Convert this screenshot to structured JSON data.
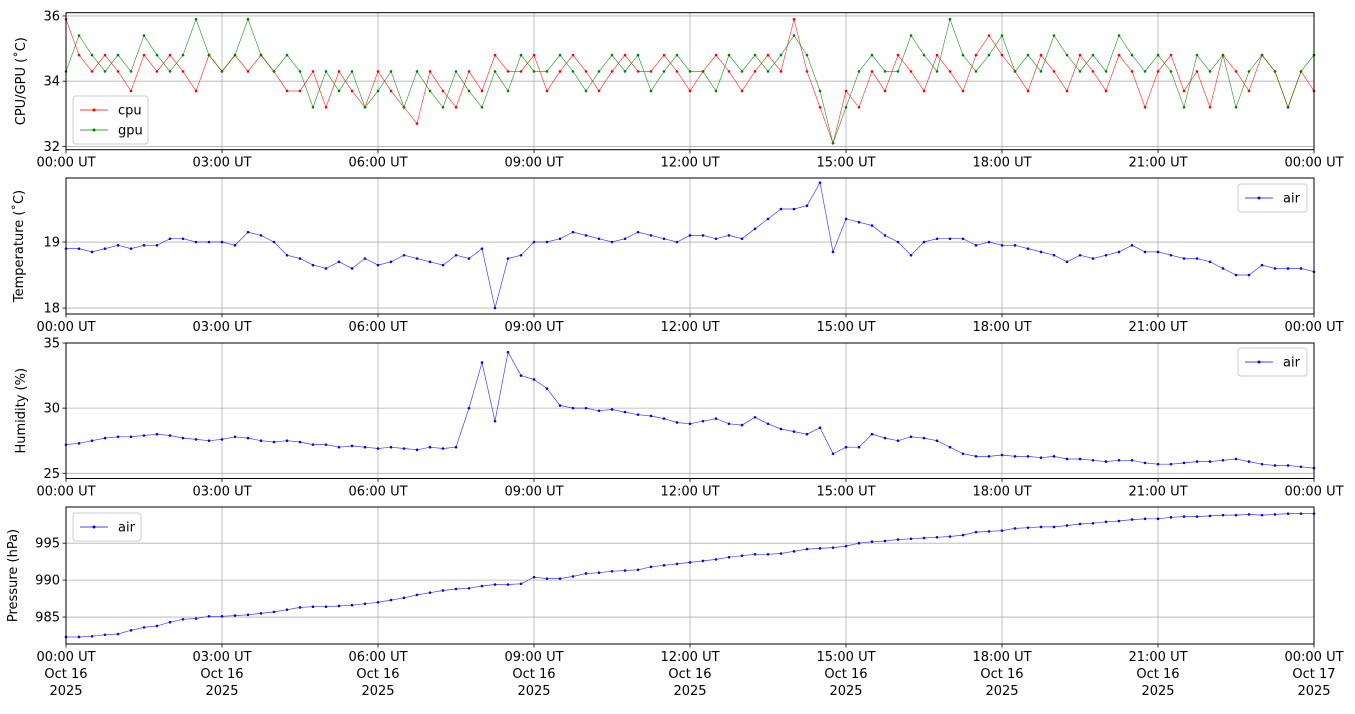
{
  "chart_data": [
    {
      "type": "line",
      "ylabel": "CPU/GPU (˚C)",
      "ylim": [
        31.9,
        36.1
      ],
      "yticks": [
        32,
        34,
        36
      ],
      "grid": true,
      "legend": "lower-left",
      "xtick_labels": [
        "00:00 UT",
        "03:00 UT",
        "06:00 UT",
        "09:00 UT",
        "12:00 UT",
        "15:00 UT",
        "18:00 UT",
        "21:00 UT",
        "00:00 UT"
      ],
      "series": [
        {
          "name": "cpu",
          "color": "#ff0000",
          "values": [
            35.9,
            34.8,
            34.3,
            34.8,
            34.3,
            33.7,
            34.8,
            34.3,
            34.8,
            34.3,
            33.7,
            34.8,
            34.3,
            34.8,
            34.3,
            34.8,
            34.3,
            33.7,
            33.7,
            34.3,
            33.2,
            34.3,
            33.7,
            33.2,
            34.3,
            33.7,
            33.2,
            32.7,
            34.3,
            33.7,
            33.2,
            34.3,
            33.7,
            34.8,
            34.3,
            34.3,
            34.8,
            33.7,
            34.3,
            34.8,
            34.3,
            33.7,
            34.3,
            34.8,
            34.3,
            34.3,
            34.8,
            34.3,
            33.7,
            34.3,
            34.8,
            34.3,
            33.7,
            34.3,
            34.8,
            34.3,
            35.9,
            34.3,
            33.2,
            32.1,
            33.7,
            33.2,
            34.3,
            33.7,
            34.8,
            34.3,
            33.7,
            34.8,
            34.3,
            33.7,
            34.8,
            35.4,
            34.8,
            34.3,
            33.7,
            34.8,
            34.3,
            33.7,
            34.8,
            34.3,
            33.7,
            34.8,
            34.3,
            33.2,
            34.3,
            34.8,
            33.7,
            34.3,
            33.2,
            34.8,
            34.3,
            33.7,
            34.8,
            34.3,
            33.2,
            34.3,
            33.7
          ]
        },
        {
          "name": "gpu",
          "color": "#008000",
          "values": [
            34.3,
            35.4,
            34.8,
            34.3,
            34.8,
            34.3,
            35.4,
            34.8,
            34.3,
            34.8,
            35.9,
            34.8,
            34.3,
            34.8,
            35.9,
            34.8,
            34.3,
            34.8,
            34.3,
            33.2,
            34.3,
            33.7,
            34.3,
            33.2,
            33.7,
            34.3,
            33.2,
            34.3,
            33.7,
            33.2,
            34.3,
            33.7,
            33.2,
            34.3,
            33.7,
            34.8,
            34.3,
            34.3,
            34.8,
            34.3,
            33.7,
            34.3,
            34.8,
            34.3,
            34.8,
            33.7,
            34.3,
            34.8,
            34.3,
            34.3,
            33.7,
            34.8,
            34.3,
            34.8,
            34.3,
            34.8,
            35.4,
            34.8,
            33.7,
            32.1,
            33.2,
            34.3,
            34.8,
            34.3,
            34.3,
            35.4,
            34.8,
            34.3,
            35.9,
            34.8,
            34.3,
            34.8,
            35.4,
            34.3,
            34.8,
            34.3,
            35.4,
            34.8,
            34.3,
            34.8,
            34.3,
            35.4,
            34.8,
            34.3,
            34.8,
            34.3,
            33.2,
            34.8,
            34.3,
            34.8,
            33.2,
            34.3,
            34.8,
            34.3,
            33.2,
            34.3,
            34.8
          ]
        }
      ]
    },
    {
      "type": "line",
      "ylabel": "Temperature (˚C)",
      "ylim": [
        17.91,
        19.97
      ],
      "yticks": [
        18,
        19
      ],
      "grid": true,
      "legend": "upper-right",
      "xtick_labels": [
        "00:00 UT",
        "03:00 UT",
        "06:00 UT",
        "09:00 UT",
        "12:00 UT",
        "15:00 UT",
        "18:00 UT",
        "21:00 UT",
        "00:00 UT"
      ],
      "series": [
        {
          "name": "air",
          "color": "#0000ff",
          "values": [
            18.9,
            18.9,
            18.85,
            18.9,
            18.95,
            18.9,
            18.95,
            18.95,
            19.05,
            19.05,
            19.0,
            19.0,
            19.0,
            18.95,
            19.15,
            19.1,
            19.0,
            18.8,
            18.75,
            18.65,
            18.6,
            18.7,
            18.6,
            18.75,
            18.65,
            18.7,
            18.8,
            18.75,
            18.7,
            18.65,
            18.8,
            18.75,
            18.9,
            18.0,
            18.75,
            18.8,
            19.0,
            19.0,
            19.05,
            19.15,
            19.1,
            19.05,
            19.0,
            19.05,
            19.15,
            19.1,
            19.05,
            19.0,
            19.1,
            19.1,
            19.05,
            19.1,
            19.05,
            19.2,
            19.35,
            19.5,
            19.5,
            19.55,
            19.9,
            18.85,
            19.35,
            19.3,
            19.25,
            19.1,
            19.0,
            18.8,
            19.0,
            19.05,
            19.05,
            19.05,
            18.95,
            19.0,
            18.95,
            18.95,
            18.9,
            18.85,
            18.8,
            18.7,
            18.8,
            18.75,
            18.8,
            18.85,
            18.95,
            18.85,
            18.85,
            18.8,
            18.75,
            18.75,
            18.7,
            18.6,
            18.5,
            18.5,
            18.65,
            18.6,
            18.6,
            18.6,
            18.55
          ]
        }
      ]
    },
    {
      "type": "line",
      "ylabel": "Humidity (%)",
      "ylim": [
        24.6,
        35.0
      ],
      "yticks": [
        25,
        30,
        35
      ],
      "grid": true,
      "legend": "upper-right",
      "xtick_labels": [
        "00:00 UT",
        "03:00 UT",
        "06:00 UT",
        "09:00 UT",
        "12:00 UT",
        "15:00 UT",
        "18:00 UT",
        "21:00 UT",
        "00:00 UT"
      ],
      "series": [
        {
          "name": "air",
          "color": "#0000ff",
          "values": [
            27.2,
            27.3,
            27.5,
            27.7,
            27.8,
            27.8,
            27.9,
            28.0,
            27.9,
            27.7,
            27.6,
            27.5,
            27.6,
            27.8,
            27.7,
            27.5,
            27.4,
            27.5,
            27.4,
            27.2,
            27.2,
            27.0,
            27.1,
            27.0,
            26.9,
            27.0,
            26.9,
            26.8,
            27.0,
            26.9,
            27.0,
            30.0,
            33.5,
            29.0,
            34.3,
            32.5,
            32.2,
            31.5,
            30.2,
            30.0,
            30.0,
            29.8,
            29.9,
            29.7,
            29.5,
            29.4,
            29.2,
            28.9,
            28.8,
            29.0,
            29.2,
            28.8,
            28.7,
            29.3,
            28.8,
            28.4,
            28.2,
            28.0,
            28.5,
            26.5,
            27.0,
            27.0,
            28.0,
            27.7,
            27.5,
            27.8,
            27.7,
            27.5,
            27.0,
            26.5,
            26.3,
            26.3,
            26.4,
            26.3,
            26.3,
            26.2,
            26.3,
            26.1,
            26.1,
            26.0,
            25.9,
            26.0,
            26.0,
            25.8,
            25.7,
            25.7,
            25.8,
            25.9,
            25.9,
            26.0,
            26.1,
            25.9,
            25.7,
            25.6,
            25.6,
            25.5,
            25.4
          ]
        }
      ]
    },
    {
      "type": "line",
      "ylabel": "Pressure (hPa)",
      "ylim": [
        981.35,
        999.9
      ],
      "yticks": [
        985,
        990,
        995
      ],
      "grid": true,
      "legend": "upper-left",
      "xtick_labels": [
        "00:00 UT",
        "03:00 UT",
        "06:00 UT",
        "09:00 UT",
        "12:00 UT",
        "15:00 UT",
        "18:00 UT",
        "21:00 UT",
        "00:00 UT"
      ],
      "xtick_dates": [
        "Oct 16",
        "Oct 16",
        "Oct 16",
        "Oct 16",
        "Oct 16",
        "Oct 16",
        "Oct 16",
        "Oct 16",
        "Oct 17"
      ],
      "xtick_years": [
        "2025",
        "2025",
        "2025",
        "2025",
        "2025",
        "2025",
        "2025",
        "2025",
        "2025"
      ],
      "series": [
        {
          "name": "air",
          "color": "#0000ff",
          "values": [
            982.3,
            982.3,
            982.4,
            982.6,
            982.7,
            983.2,
            983.6,
            983.8,
            984.3,
            984.7,
            984.8,
            985.1,
            985.1,
            985.2,
            985.3,
            985.5,
            985.7,
            986.0,
            986.3,
            986.4,
            986.4,
            986.5,
            986.6,
            986.8,
            987.0,
            987.3,
            987.6,
            988.0,
            988.3,
            988.6,
            988.8,
            988.9,
            989.2,
            989.4,
            989.4,
            989.5,
            990.4,
            990.2,
            990.2,
            990.5,
            990.9,
            991.0,
            991.2,
            991.3,
            991.4,
            991.8,
            992.0,
            992.2,
            992.4,
            992.6,
            992.8,
            993.1,
            993.3,
            993.5,
            993.5,
            993.6,
            993.9,
            994.2,
            994.3,
            994.4,
            994.6,
            995.0,
            995.2,
            995.3,
            995.5,
            995.6,
            995.7,
            995.8,
            995.9,
            996.1,
            996.5,
            996.6,
            996.7,
            997.0,
            997.1,
            997.2,
            997.2,
            997.4,
            997.6,
            997.7,
            997.9,
            998.0,
            998.2,
            998.3,
            998.3,
            998.5,
            998.6,
            998.6,
            998.7,
            998.8,
            998.8,
            998.9,
            998.8,
            998.9,
            999.0,
            999.0,
            999.0
          ]
        }
      ]
    }
  ],
  "x_times": [
    "00:00",
    "00:15",
    "00:30",
    "00:45",
    "01:00",
    "01:15",
    "01:30",
    "01:45",
    "02:00",
    "02:15",
    "02:30",
    "02:45",
    "03:00",
    "03:15",
    "03:30",
    "03:45",
    "04:00",
    "04:15",
    "04:30",
    "04:45",
    "05:00",
    "05:15",
    "05:30",
    "05:45",
    "06:00",
    "06:15",
    "06:30",
    "06:45",
    "07:00",
    "07:15",
    "07:30",
    "07:45",
    "08:00",
    "08:15",
    "08:30",
    "08:45",
    "09:00",
    "09:15",
    "09:30",
    "09:45",
    "10:00",
    "10:15",
    "10:30",
    "10:45",
    "11:00",
    "11:15",
    "11:30",
    "11:45",
    "12:00",
    "12:15",
    "12:30",
    "12:45",
    "13:00",
    "13:15",
    "13:30",
    "13:45",
    "14:00",
    "14:15",
    "14:30",
    "14:45",
    "15:00",
    "15:15",
    "15:30",
    "15:45",
    "16:00",
    "16:15",
    "16:30",
    "16:45",
    "17:00",
    "17:15",
    "17:30",
    "17:45",
    "18:00",
    "18:15",
    "18:30",
    "18:45",
    "19:00",
    "19:15",
    "19:30",
    "19:45",
    "20:00",
    "20:15",
    "20:30",
    "20:45",
    "21:00",
    "21:15",
    "21:30",
    "21:45",
    "22:00",
    "22:15",
    "22:30",
    "22:45",
    "23:00",
    "23:15",
    "23:30",
    "23:45",
    "24:00"
  ]
}
